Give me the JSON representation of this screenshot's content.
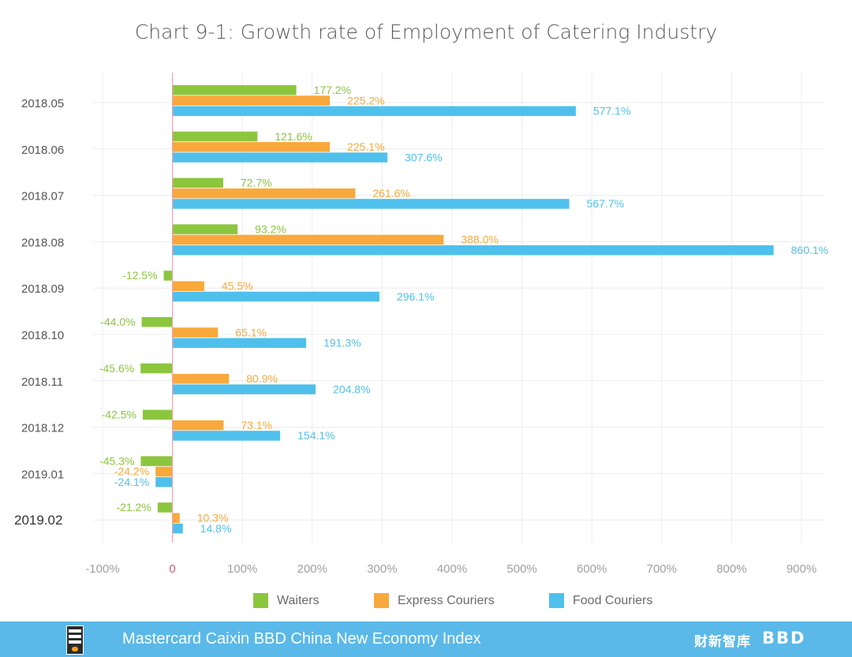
{
  "chart_data": {
    "type": "bar",
    "orientation": "horizontal",
    "title": "Chart 9-1: Growth rate of Employment of Catering Industry",
    "categories": [
      "2018.05",
      "2018.06",
      "2018.07",
      "2018.08",
      "2018.09",
      "2018.10",
      "2018.11",
      "2018.12",
      "2019.01",
      "2019.02"
    ],
    "series": [
      {
        "name": "Waiters",
        "color": "#8cc63f",
        "values": [
          177.2,
          121.6,
          72.7,
          93.2,
          -12.5,
          -44.0,
          -45.6,
          -42.5,
          -45.3,
          -21.2
        ],
        "labels": [
          "177.2%",
          "121.6%",
          "72.7%",
          "93.2%",
          "-12.5%",
          "-44.0%",
          "-45.6%",
          "-42.5%",
          "-45.3%",
          "-21.2%"
        ]
      },
      {
        "name": "Express Couriers",
        "color": "#f9a93b",
        "values": [
          225.2,
          225.1,
          261.6,
          388.0,
          45.5,
          65.1,
          80.9,
          73.1,
          -24.2,
          10.3
        ],
        "labels": [
          "225.2%",
          "225.1%",
          "261.6%",
          "388.0%",
          "45.5%",
          "65.1%",
          "80.9%",
          "73.1%",
          "-24.2%",
          "10.3%"
        ]
      },
      {
        "name": "Food Couriers",
        "color": "#4fc0ec",
        "values": [
          577.1,
          307.6,
          567.7,
          860.1,
          296.1,
          191.3,
          204.8,
          154.1,
          -24.1,
          14.8
        ],
        "labels": [
          "577.1%",
          "307.6%",
          "567.7%",
          "860.1%",
          "296.1%",
          "191.3%",
          "204.8%",
          "154.1%",
          "-24.1%",
          "14.8%"
        ]
      }
    ],
    "xlim": [
      -100,
      900
    ],
    "xticks": [
      -100,
      0,
      100,
      200,
      300,
      400,
      500,
      600,
      700,
      800,
      900
    ],
    "xtick_labels": [
      "-100%",
      "0",
      "100%",
      "200%",
      "300%",
      "400%",
      "500%",
      "600%",
      "700%",
      "800%",
      "900%"
    ],
    "xlabel": "",
    "ylabel": "",
    "grid": true,
    "legend_position": "bottom"
  },
  "footer": {
    "text": "Mastercard Caixin BBD China New Economy Index",
    "brand_1": "财新智库",
    "brand_2": "BBD"
  },
  "colors": {
    "footer_bg": "#5ab9e8",
    "zero_line": "#f0a0b0",
    "grid": "#ececec"
  }
}
